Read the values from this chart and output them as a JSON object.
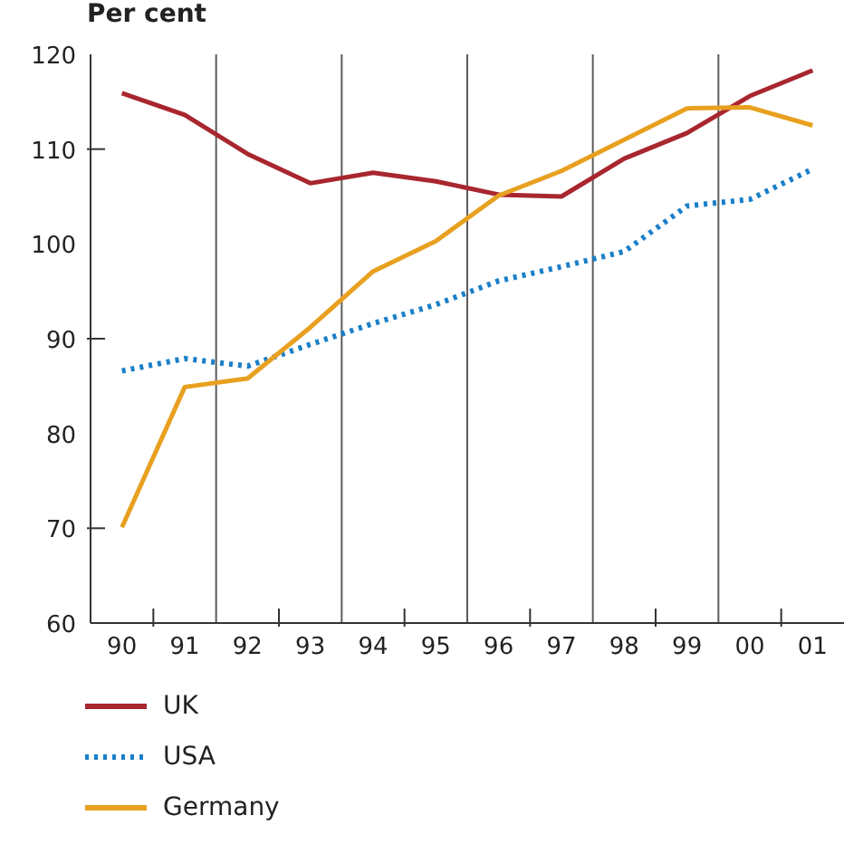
{
  "chart_data": {
    "type": "line",
    "ylabel": "Per cent",
    "categories": [
      "90",
      "91",
      "92",
      "93",
      "94",
      "95",
      "96",
      "97",
      "98",
      "99",
      "00",
      "01"
    ],
    "series": [
      {
        "name": "UK",
        "color": "#a8262e",
        "line_style": "solid",
        "values": [
          115.9,
          113.6,
          109.5,
          106.4,
          107.5,
          106.6,
          105.2,
          105.0,
          109.0,
          111.7,
          115.6,
          118.3
        ]
      },
      {
        "name": "USA",
        "color": "#1a7fc8",
        "line_style": "dotted",
        "values": [
          86.6,
          87.9,
          87.1,
          89.4,
          91.6,
          93.6,
          96.1,
          97.6,
          99.2,
          104.0,
          104.7,
          107.9
        ]
      },
      {
        "name": "Germany",
        "color": "#e8a020",
        "line_style": "solid",
        "values": [
          70.1,
          84.9,
          85.8,
          91.2,
          97.1,
          100.3,
          105.1,
          107.7,
          111.0,
          114.3,
          114.4,
          112.5
        ]
      }
    ],
    "ylim": [
      60,
      120
    ],
    "yticks": [
      60,
      70,
      80,
      90,
      100,
      110,
      120
    ],
    "grid": true,
    "legend": "bottom",
    "marker": "none"
  }
}
